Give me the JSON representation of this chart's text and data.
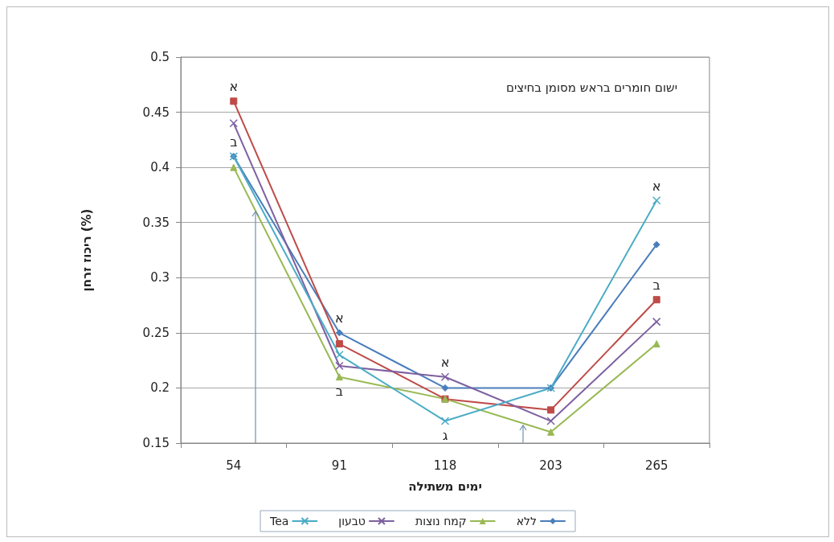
{
  "chart_data": {
    "type": "line",
    "xlabel": "ימים משתילה",
    "ylabel": "ריכוז זרחן (%)",
    "categories": [
      "54",
      "91",
      "118",
      "203",
      "265"
    ],
    "ylim": [
      0.15,
      0.5
    ],
    "yticks": [
      0.15,
      0.2,
      0.25,
      0.3,
      0.35,
      0.4,
      0.45,
      0.5
    ],
    "grid": "y",
    "legend": "bottom",
    "line_style": "solid",
    "series": [
      {
        "name": "ללא",
        "color": "#4a7ebb",
        "marker": "diamond",
        "values": [
          0.41,
          0.25,
          0.2,
          0.2,
          0.33
        ]
      },
      {
        "color": "#be4b48",
        "marker": "square",
        "values": [
          0.46,
          0.24,
          0.19,
          0.18,
          0.28
        ]
      },
      {
        "name": "קמח נוצות",
        "color": "#98b954",
        "marker": "triangle",
        "values": [
          0.4,
          0.21,
          0.19,
          0.16,
          0.24
        ]
      },
      {
        "name": "טבעון",
        "color": "#7d60a0",
        "marker": "cross",
        "values": [
          0.44,
          0.22,
          0.21,
          0.17,
          0.26
        ]
      },
      {
        "name": "Tea",
        "color": "#4bacc6",
        "marker": "cross",
        "values": [
          0.41,
          0.23,
          0.17,
          0.2,
          0.37
        ]
      }
    ],
    "annotations": [
      "ישום חומרים בראש מסומן בחיצים",
      {
        "text": "א",
        "x": "54",
        "y": 0.46
      },
      {
        "text": "ב",
        "x": "54",
        "y": 0.41
      },
      {
        "text": "א",
        "x": "91",
        "y": 0.25
      },
      {
        "text": "ב",
        "x": "91",
        "y": 0.21
      },
      {
        "text": "א",
        "x": "118",
        "y": 0.21
      },
      {
        "text": "ג",
        "x": "118",
        "y": 0.17
      },
      {
        "text": "א",
        "x": "265",
        "y": 0.37
      },
      {
        "text": "ב",
        "x": "265",
        "y": 0.28
      }
    ]
  }
}
